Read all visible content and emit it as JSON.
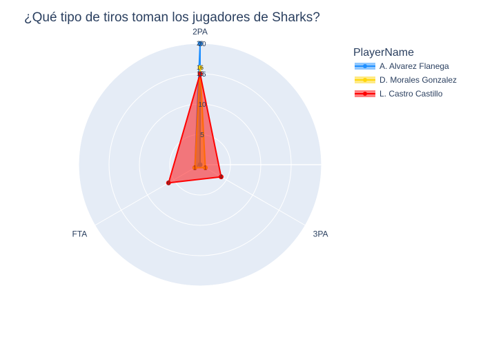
{
  "chart_data": {
    "type": "radar",
    "title": "¿Qué tipo de tiros toman los jugadores de Sharks?",
    "axes": [
      "2PA",
      "3PA",
      "FTA"
    ],
    "radial_range": [
      0,
      20
    ],
    "radial_ticks": [
      0,
      5,
      10,
      15,
      20
    ],
    "legend_title": "PlayerName",
    "legend_position": "top-right",
    "series": [
      {
        "name": "A. Alvarez Flanega",
        "values": [
          20,
          0,
          1
        ],
        "labels": [
          "20",
          "",
          "1"
        ],
        "color": "#1f8fff"
      },
      {
        "name": "D. Morales Gonzalez",
        "values": [
          16,
          1,
          1
        ],
        "labels": [
          "16",
          "1",
          "1"
        ],
        "color": "#ffd60a"
      },
      {
        "name": "L. Castro Castillo",
        "values": [
          15,
          4,
          6
        ],
        "labels": [
          "15",
          "4",
          "6"
        ],
        "color": "#ff0000"
      }
    ]
  },
  "colors": {
    "polar_background": "#e5ecf6",
    "grid": "#ffffff",
    "text": "#2a3f5f"
  }
}
